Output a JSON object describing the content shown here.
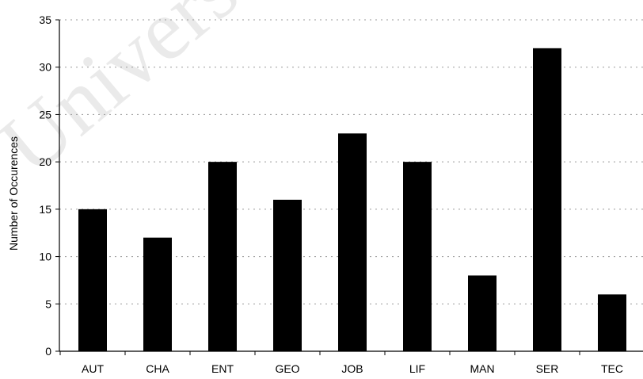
{
  "watermark": "Universi",
  "chart_data": {
    "type": "bar",
    "title": "",
    "xlabel": "",
    "ylabel": "Number of Occurences",
    "categories": [
      "AUT",
      "CHA",
      "ENT",
      "GEO",
      "JOB",
      "LIF",
      "MAN",
      "SER",
      "TEC"
    ],
    "values": [
      15,
      12,
      20,
      16,
      23,
      20,
      8,
      32,
      6
    ],
    "ylim": [
      0,
      35
    ],
    "yticks": [
      0,
      5,
      10,
      15,
      20,
      25,
      30,
      35
    ],
    "grid": true,
    "legend": "none",
    "bar_color": "#000000"
  }
}
